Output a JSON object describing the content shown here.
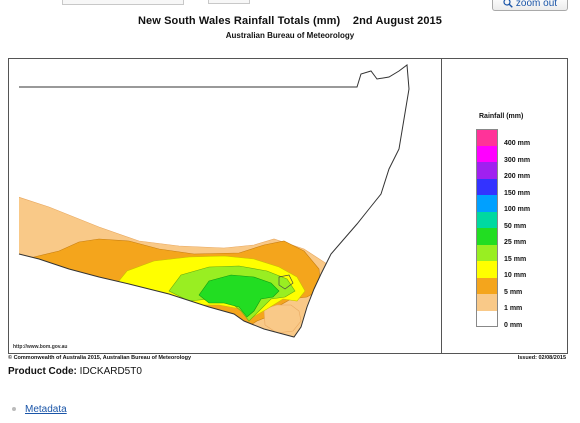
{
  "toolbar": {
    "zoom_label": "zoom out",
    "zoom_icon": "magnifier-icon"
  },
  "map": {
    "title": "New South Wales Rainfall Totals (mm)",
    "date": "2nd August 2015",
    "subtitle": "Australian Bureau of Meteorology",
    "url": "http://www.bom.gov.au",
    "copyright": "© Commonwealth of Australia 2015, Australian Bureau of Meteorology",
    "issued": "Issued: 02/08/2015"
  },
  "legend": {
    "title": "Rainfall (mm)",
    "items": [
      {
        "label": "400 mm",
        "color": "#ff3399"
      },
      {
        "label": "300 mm",
        "color": "#ff00ff"
      },
      {
        "label": "200 mm",
        "color": "#a020f0"
      },
      {
        "label": "150 mm",
        "color": "#3333ff"
      },
      {
        "label": "100 mm",
        "color": "#00a0ff"
      },
      {
        "label": "50 mm",
        "color": "#00d9a0"
      },
      {
        "label": "25 mm",
        "color": "#22dd22"
      },
      {
        "label": "15 mm",
        "color": "#99ee22"
      },
      {
        "label": "10 mm",
        "color": "#ffff00"
      },
      {
        "label": "5 mm",
        "color": "#f4a51c"
      },
      {
        "label": "1 mm",
        "color": "#f9c988"
      },
      {
        "label": "0 mm",
        "color": "#ffffff"
      }
    ]
  },
  "product": {
    "label": "Product Code:",
    "code": "IDCKARD5T0"
  },
  "links": {
    "metadata": "Metadata"
  }
}
